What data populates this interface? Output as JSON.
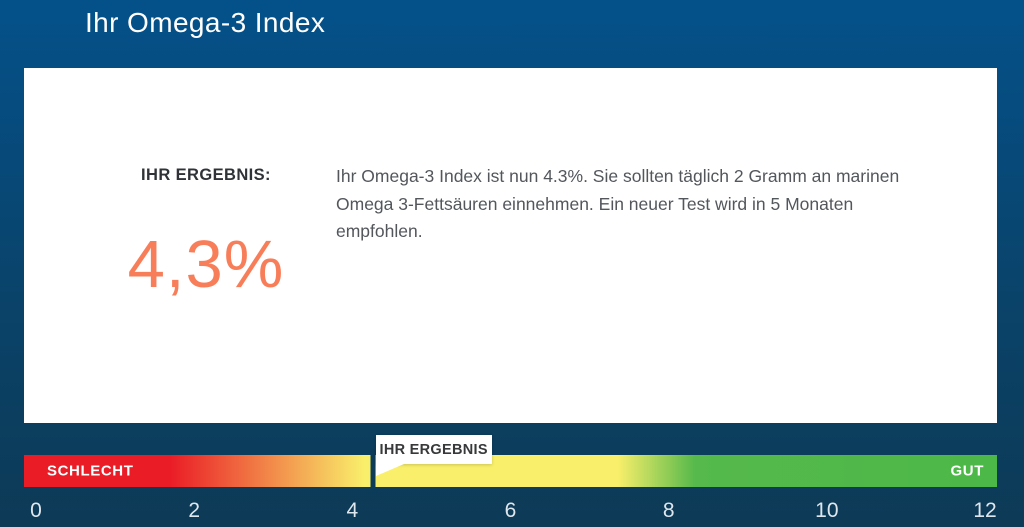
{
  "page": {
    "title": "Ihr Omega-3 Index"
  },
  "card": {
    "result_label": "IHR ERGEBNIS:",
    "result_value": "4,3%",
    "result_value_color": "#f87e5a",
    "description_lines": [
      "Ihr Omega-3 Index ist nun 4.3%. Sie sollten täglich 2 Gramm an marinen",
      "Omega 3-Fettsäuren einnehmen. Ein neuer Test wird in 5 Monaten",
      "empfohlen."
    ]
  },
  "scale": {
    "tooltip_label": "IHR ERGEBNIS",
    "bad_label": "SCHLECHT",
    "good_label": "GUT",
    "min": 0,
    "max": 12,
    "value": 4.3,
    "ticks": [
      "0",
      "2",
      "4",
      "6",
      "8",
      "10",
      "12"
    ],
    "gradient_stops": [
      {
        "color": "#ea1c26",
        "pos": 0
      },
      {
        "color": "#ea1c26",
        "pos": 15
      },
      {
        "color": "#f9ef6b",
        "pos": 35
      },
      {
        "color": "#f9ef6b",
        "pos": 61
      },
      {
        "color": "#55b94b",
        "pos": 69
      },
      {
        "color": "#4cb848",
        "pos": 100
      }
    ],
    "marker_color": "#0d3c59"
  },
  "chart_data": {
    "type": "linear-gauge",
    "title": "Ihr Omega-3 Index",
    "value": 4.3,
    "value_label": "4,3%",
    "axis_range": [
      0,
      12
    ],
    "tick_labels": [
      0,
      2,
      4,
      6,
      8,
      10,
      12
    ],
    "zones": [
      {
        "label": "SCHLECHT",
        "color": "#ea1c26",
        "approx_range": [
          0,
          2
        ]
      },
      {
        "label": "",
        "color": "#f9ef6b",
        "approx_range": [
          4,
          7.5
        ]
      },
      {
        "label": "GUT",
        "color": "#4cb848",
        "approx_range": [
          8.5,
          12
        ]
      }
    ],
    "marker_label": "IHR ERGEBNIS",
    "legend_position": "none",
    "grid": false
  }
}
